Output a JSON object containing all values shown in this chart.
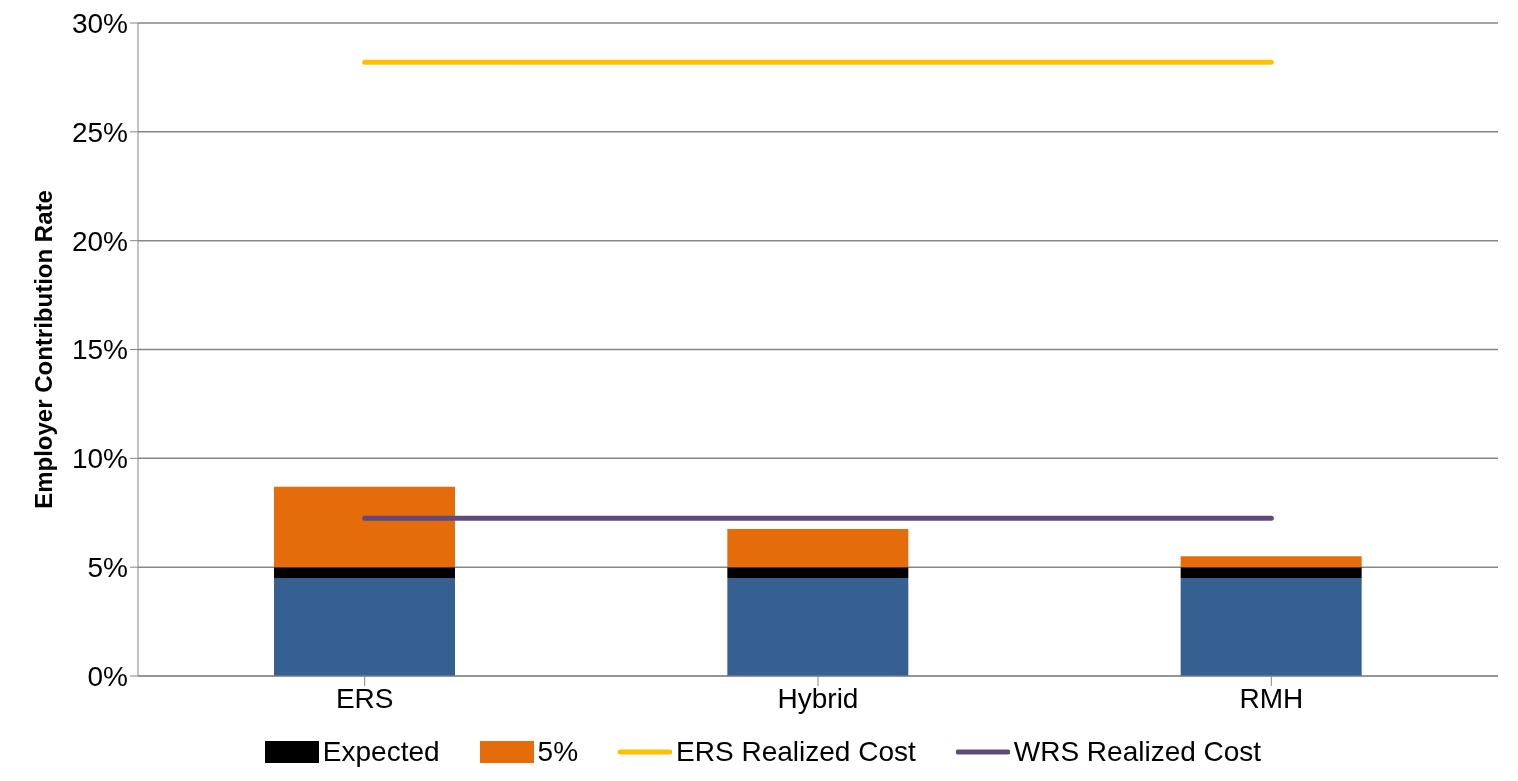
{
  "chart_data": {
    "type": "bar",
    "stacked": true,
    "ylabel": "Employer Contribution Rate",
    "categories": [
      "ERS",
      "Hybrid",
      "RMH"
    ],
    "series": [
      {
        "color": "#366092",
        "values": [
          4.5,
          4.5,
          4.5
        ]
      },
      {
        "name": "Expected",
        "color": "#000000",
        "values": [
          0.5,
          0.5,
          0.5
        ]
      },
      {
        "name": "5%",
        "color": "#e46c0a",
        "values": [
          3.7,
          1.75,
          0.5
        ]
      },
      {
        "name": "ERS Realized Cost",
        "type": "line",
        "color": "#ffc000",
        "values": [
          28.2,
          28.2,
          28.2
        ]
      },
      {
        "name": "WRS Realized Cost",
        "type": "line",
        "color": "#604a7b",
        "values": [
          7.25,
          7.25,
          7.25
        ]
      }
    ],
    "ylim": [
      0,
      30
    ],
    "yticks": [
      {
        "value": 0,
        "label": "0%"
      },
      {
        "value": 5,
        "label": "5%"
      },
      {
        "value": 10,
        "label": "10%"
      },
      {
        "value": 15,
        "label": "15%"
      },
      {
        "value": 20,
        "label": "20%"
      },
      {
        "value": 25,
        "label": "25%"
      },
      {
        "value": 30,
        "label": "30%"
      }
    ],
    "grid": "y",
    "legend": "bottom"
  }
}
